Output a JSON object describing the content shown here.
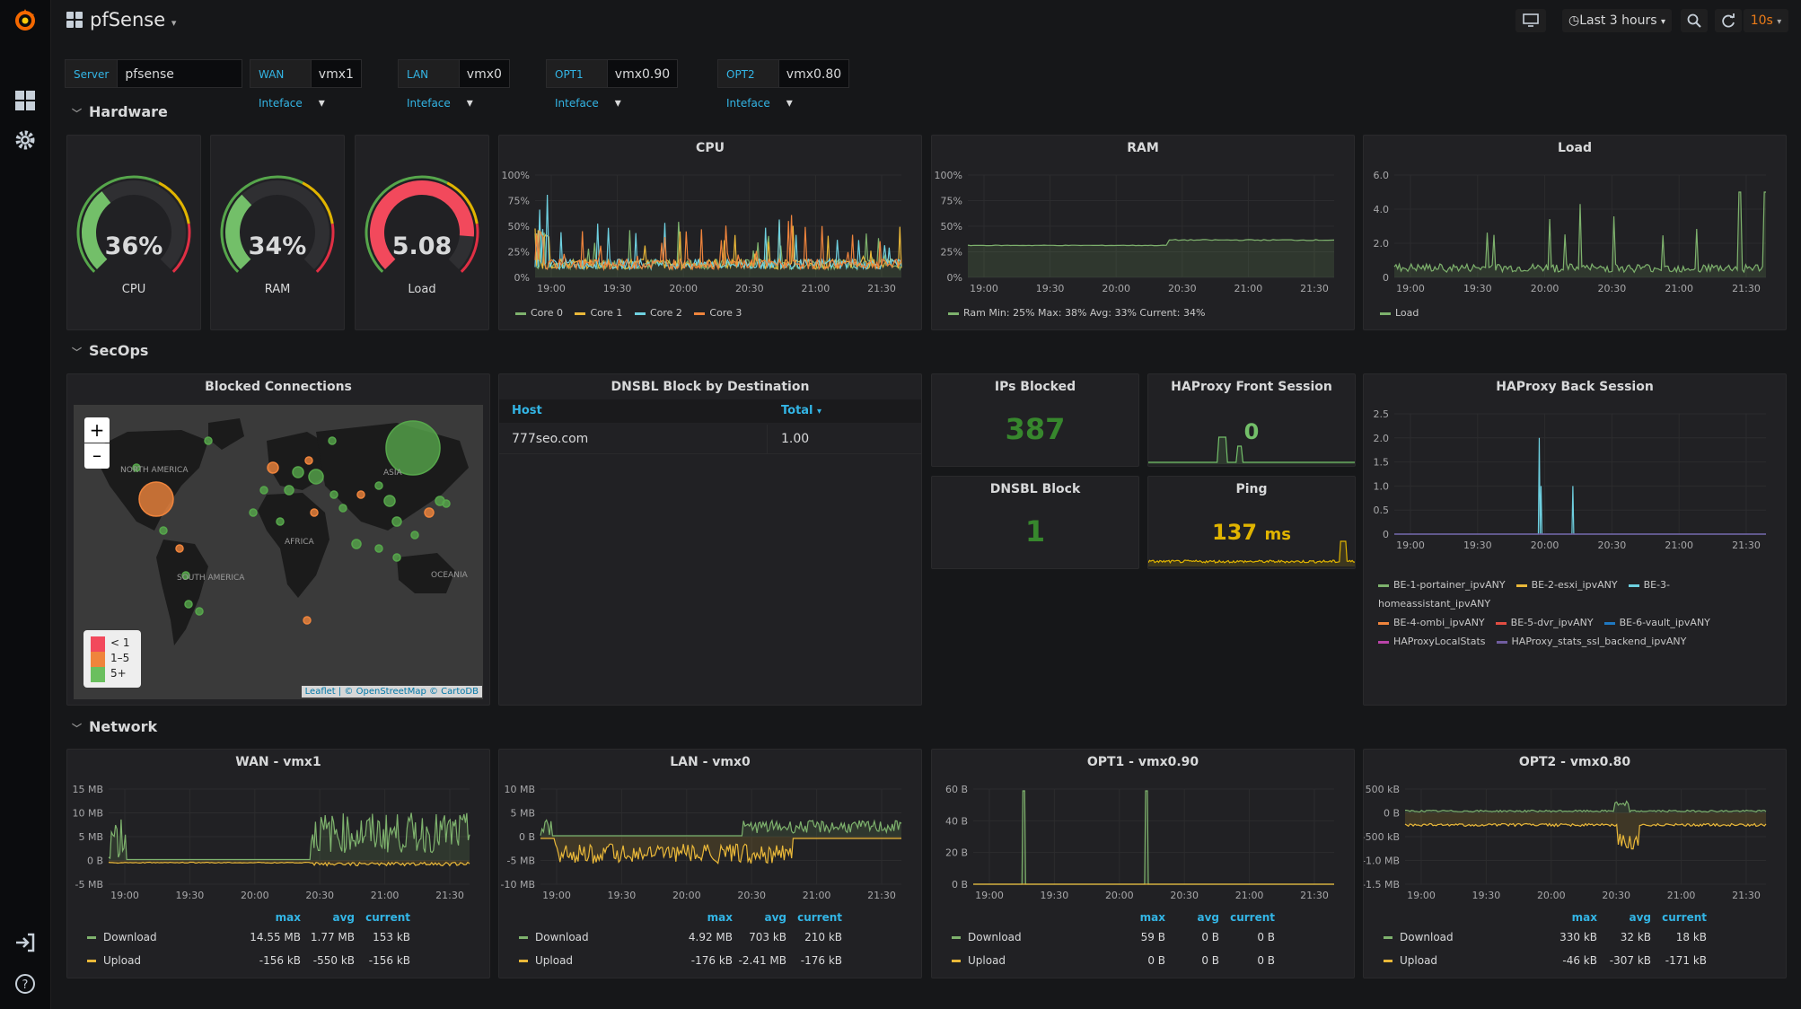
{
  "topbar": {
    "dashboard_title": "pfSense",
    "time_range": "Last 3 hours",
    "refresh": "10s"
  },
  "variables": [
    {
      "label": "Server",
      "value": "pfsense"
    },
    {
      "label": "WAN Inteface",
      "value": "vmx1"
    },
    {
      "label": "LAN Inteface",
      "value": "vmx0"
    },
    {
      "label": "OPT1 Inteface",
      "value": "vmx0.90"
    },
    {
      "label": "OPT2 Inteface",
      "value": "vmx0.80"
    }
  ],
  "rows": {
    "hardware": "Hardware",
    "secops": "SecOps",
    "network": "Network"
  },
  "colors": {
    "green": "#7eb26d",
    "orange": "#eab839",
    "blue": "#6ed0e0",
    "red": "#e24d42",
    "cyan": "#33b5e5"
  },
  "gauges": [
    {
      "value": "36%",
      "label": "CPU",
      "level": 0.36,
      "color": "#73bf69"
    },
    {
      "value": "34%",
      "label": "RAM",
      "level": 0.34,
      "color": "#73bf69"
    },
    {
      "value": "5.08",
      "label": "Load",
      "level": 0.85,
      "color": "#f2495c"
    }
  ],
  "cpu": {
    "title": "CPU",
    "yticks": [
      "100%",
      "75%",
      "50%",
      "25%",
      "0%"
    ],
    "xticks": [
      "19:00",
      "19:30",
      "20:00",
      "20:30",
      "21:00",
      "21:30"
    ],
    "legend": [
      "Core 0",
      "Core 1",
      "Core 2",
      "Core 3"
    ]
  },
  "ram": {
    "title": "RAM",
    "yticks": [
      "100%",
      "75%",
      "50%",
      "25%",
      "0%"
    ],
    "xticks": [
      "19:00",
      "19:30",
      "20:00",
      "20:30",
      "21:00",
      "21:30"
    ],
    "legend": "Ram  Min: 25%  Max: 38%  Avg: 33%  Current: 34%"
  },
  "load": {
    "title": "Load",
    "yticks": [
      "6.0",
      "4.0",
      "2.0",
      "0"
    ],
    "xticks": [
      "19:00",
      "19:30",
      "20:00",
      "20:30",
      "21:00",
      "21:30"
    ],
    "legend": "Load"
  },
  "map": {
    "title": "Blocked Connections",
    "zoom_in": "+",
    "zoom_out": "–",
    "legend": [
      "< 1",
      "1–5",
      "5+"
    ],
    "labels": [
      "NORTH AMERICA",
      "SOUTH AMERICA",
      "AFRICA",
      "ASIA",
      "OCEANIA"
    ],
    "attribution": "Leaflet | © OpenStreetMap © CartoDB"
  },
  "dnsbl_table": {
    "title": "DNSBL Block by Destination",
    "col_host": "Host",
    "col_total": "Total",
    "rows": [
      {
        "host": "777seo.com",
        "total": "1.00"
      }
    ]
  },
  "ips_blocked": {
    "title": "IPs Blocked",
    "value": "387"
  },
  "dnsbl_block": {
    "title": "DNSBL Block",
    "value": "1"
  },
  "haproxy_front": {
    "title": "HAProxy Front Session",
    "value": "0"
  },
  "ping": {
    "title": "Ping",
    "value": "137",
    "unit": "ms"
  },
  "haproxy_back": {
    "title": "HAProxy Back Session",
    "yticks": [
      "2.5",
      "2.0",
      "1.5",
      "1.0",
      "0.5",
      "0"
    ],
    "xticks": [
      "19:00",
      "19:30",
      "20:00",
      "20:30",
      "21:00",
      "21:30"
    ],
    "legend": [
      {
        "name": "BE-1-portainer_ipvANY",
        "color": "#7eb26d"
      },
      {
        "name": "BE-2-esxi_ipvANY",
        "color": "#eab839"
      },
      {
        "name": "BE-3-homeassistant_ipvANY",
        "color": "#6ed0e0"
      },
      {
        "name": "BE-4-ombi_ipvANY",
        "color": "#ef843c"
      },
      {
        "name": "BE-5-dvr_ipvANY",
        "color": "#e24d42"
      },
      {
        "name": "BE-6-vault_ipvANY",
        "color": "#1f78c1"
      },
      {
        "name": "HAProxyLocalStats",
        "color": "#ba43a9"
      },
      {
        "name": "HAProxy_stats_ssl_backend_ipvANY",
        "color": "#705da0"
      }
    ]
  },
  "net": [
    {
      "title": "WAN - vmx1",
      "yticks": [
        "15 MB",
        "10 MB",
        "5 MB",
        "0 B",
        "-5 MB"
      ],
      "xticks": [
        "19:00",
        "19:30",
        "20:00",
        "20:30",
        "21:00",
        "21:30"
      ],
      "download": {
        "max": "14.55 MB",
        "avg": "1.77 MB",
        "current": "153 kB"
      },
      "upload": {
        "max": "-156 kB",
        "avg": "-550 kB",
        "current": "-156 kB"
      }
    },
    {
      "title": "LAN - vmx0",
      "yticks": [
        "10 MB",
        "5 MB",
        "0 B",
        "-5 MB",
        "-10 MB"
      ],
      "xticks": [
        "19:00",
        "19:30",
        "20:00",
        "20:30",
        "21:00",
        "21:30"
      ],
      "download": {
        "max": "4.92 MB",
        "avg": "703 kB",
        "current": "210 kB"
      },
      "upload": {
        "max": "-176 kB",
        "avg": "-2.41 MB",
        "current": "-176 kB"
      }
    },
    {
      "title": "OPT1 - vmx0.90",
      "yticks": [
        "60 B",
        "40 B",
        "20 B",
        "0 B"
      ],
      "xticks": [
        "19:00",
        "19:30",
        "20:00",
        "20:30",
        "21:00",
        "21:30"
      ],
      "download": {
        "max": "59 B",
        "avg": "0 B",
        "current": "0 B"
      },
      "upload": {
        "max": "0 B",
        "avg": "0 B",
        "current": "0 B"
      }
    },
    {
      "title": "OPT2 - vmx0.80",
      "yticks": [
        "500 kB",
        "0 B",
        "-500 kB",
        "-1.0 MB",
        "-1.5 MB"
      ],
      "xticks": [
        "19:00",
        "19:30",
        "20:00",
        "20:30",
        "21:00",
        "21:30"
      ],
      "download": {
        "max": "330 kB",
        "avg": "32 kB",
        "current": "18 kB"
      },
      "upload": {
        "max": "-46 kB",
        "avg": "-307 kB",
        "current": "-171 kB"
      }
    }
  ],
  "net_labels": {
    "max": "max",
    "avg": "avg",
    "current": "current",
    "download": "Download",
    "upload": "Upload"
  }
}
